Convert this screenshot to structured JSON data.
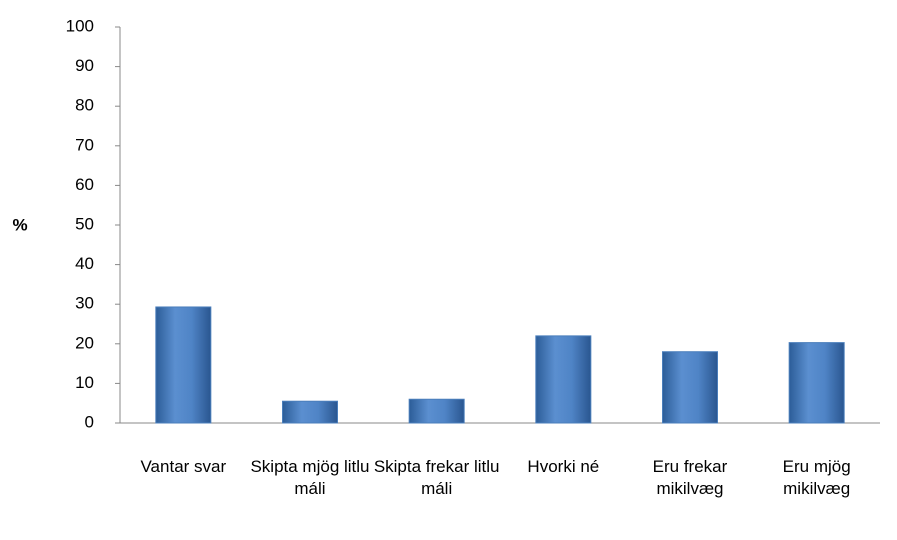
{
  "chart_data": {
    "type": "bar",
    "y_label": "%",
    "categories": [
      "Vantar svar",
      "Skipta mjög litlu máli",
      "Skipta frekar litlu máli",
      "Hvorki né",
      "Eru frekar mikilvæg",
      "Eru mjög mikilvæg"
    ],
    "values": [
      29.3,
      5.5,
      6,
      22,
      18,
      20.3
    ],
    "color": "#4a7ebb",
    "ylim": [
      0,
      100
    ],
    "yticks": [
      0,
      10,
      20,
      30,
      40,
      50,
      60,
      70,
      80,
      90,
      100
    ],
    "grid": false
  }
}
